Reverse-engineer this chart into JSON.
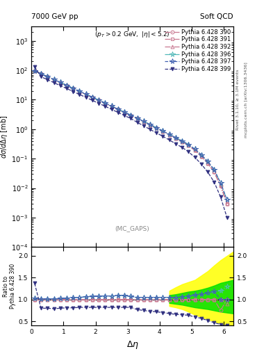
{
  "title_left": "7000 GeV pp",
  "title_right": "Soft QCD",
  "annotation": "(p_{T} > 0.2 GeV, |\\eta| < 5.2)",
  "mc_label": "(MC_GAPS)",
  "xlabel": "\\Delta\\eta",
  "ylabel_main": "d\\sigma/d\\Delta\\eta [mb]",
  "ylabel_ratio": "Ratio to Pythia 6.428 390",
  "right_label_top": "Rivet 3.1.10, \\geq 3.1M events",
  "right_label_bottom": "mcplots.cern.ch [arXiv:1306.3436]",
  "series": [
    {
      "label": "Pythia 6.428 390",
      "color": "#c87890",
      "marker": "o",
      "ls": "-.",
      "lw": 0.9,
      "ms": 3.5,
      "filled": false
    },
    {
      "label": "Pythia 6.428 391",
      "color": "#c87890",
      "marker": "s",
      "ls": "-.",
      "lw": 0.9,
      "ms": 3.5,
      "filled": false
    },
    {
      "label": "Pythia 6.428 392",
      "color": "#c87890",
      "marker": "^",
      "ls": "-.",
      "lw": 0.9,
      "ms": 3.5,
      "filled": false
    },
    {
      "label": "Pythia 6.428 396",
      "color": "#50b8b8",
      "marker": "*",
      "ls": "-.",
      "lw": 0.9,
      "ms": 5,
      "filled": false
    },
    {
      "label": "Pythia 6.428 397",
      "color": "#4060b0",
      "marker": "*",
      "ls": "--",
      "lw": 0.9,
      "ms": 5,
      "filled": false
    },
    {
      "label": "Pythia 6.428 399",
      "color": "#303080",
      "marker": "v",
      "ls": "--",
      "lw": 0.9,
      "ms": 3.5,
      "filled": true
    }
  ],
  "x_main": [
    0.1,
    0.3,
    0.5,
    0.7,
    0.9,
    1.1,
    1.3,
    1.5,
    1.7,
    1.9,
    2.1,
    2.3,
    2.5,
    2.7,
    2.9,
    3.1,
    3.3,
    3.5,
    3.7,
    3.9,
    4.1,
    4.3,
    4.5,
    4.7,
    4.9,
    5.1,
    5.3,
    5.5,
    5.7,
    5.9,
    6.1
  ],
  "y_series": [
    [
      95,
      75,
      60,
      48,
      38,
      30,
      24,
      19,
      15,
      12,
      9.5,
      7.5,
      6.0,
      4.7,
      3.7,
      2.9,
      2.3,
      1.8,
      1.4,
      1.1,
      0.85,
      0.65,
      0.5,
      0.38,
      0.28,
      0.19,
      0.12,
      0.07,
      0.035,
      0.012,
      0.003
    ],
    [
      95,
      75,
      60,
      48,
      38,
      30,
      24,
      19,
      15,
      12,
      9.5,
      7.5,
      6.0,
      4.7,
      3.7,
      2.9,
      2.3,
      1.8,
      1.4,
      1.1,
      0.85,
      0.65,
      0.5,
      0.38,
      0.28,
      0.19,
      0.12,
      0.07,
      0.035,
      0.012,
      0.003
    ],
    [
      95,
      75,
      60,
      48,
      38,
      30,
      24,
      19,
      15,
      12,
      9.5,
      7.5,
      6.0,
      4.7,
      3.7,
      2.9,
      2.3,
      1.8,
      1.4,
      1.1,
      0.85,
      0.65,
      0.5,
      0.38,
      0.28,
      0.19,
      0.12,
      0.07,
      0.035,
      0.012,
      0.003
    ],
    [
      97,
      76,
      61,
      49,
      39,
      31,
      24.5,
      19.5,
      15.5,
      12.3,
      9.7,
      7.7,
      6.1,
      4.8,
      3.8,
      3.0,
      2.35,
      1.85,
      1.45,
      1.12,
      0.87,
      0.67,
      0.52,
      0.4,
      0.3,
      0.21,
      0.135,
      0.08,
      0.042,
      0.015,
      0.004
    ],
    [
      97,
      76,
      61,
      49,
      39,
      31,
      24.5,
      19.5,
      15.5,
      12.3,
      9.7,
      7.7,
      6.1,
      4.8,
      3.8,
      3.0,
      2.35,
      1.85,
      1.45,
      1.12,
      0.87,
      0.67,
      0.52,
      0.4,
      0.3,
      0.21,
      0.135,
      0.08,
      0.042,
      0.015,
      0.004
    ],
    [
      130,
      60,
      48,
      38,
      30,
      24,
      19,
      15,
      12,
      9.5,
      7.5,
      6.0,
      4.7,
      3.7,
      2.9,
      2.3,
      1.7,
      1.3,
      0.98,
      0.75,
      0.57,
      0.43,
      0.32,
      0.24,
      0.17,
      0.11,
      0.065,
      0.035,
      0.016,
      0.005,
      0.001
    ]
  ],
  "ratio_series": [
    [
      1.0,
      1.0,
      1.0,
      1.0,
      1.0,
      1.0,
      1.0,
      1.0,
      1.0,
      1.0,
      1.0,
      1.0,
      1.0,
      1.0,
      1.0,
      1.0,
      1.0,
      1.0,
      1.0,
      1.0,
      1.0,
      1.0,
      1.0,
      1.0,
      1.0,
      1.0,
      1.0,
      1.0,
      1.0,
      0.75,
      1.0
    ],
    [
      1.0,
      1.0,
      1.0,
      1.0,
      1.0,
      1.0,
      1.0,
      1.0,
      1.0,
      1.0,
      1.0,
      1.0,
      1.0,
      1.0,
      1.0,
      1.0,
      1.0,
      1.0,
      1.0,
      1.0,
      1.0,
      1.0,
      1.0,
      1.0,
      1.0,
      1.0,
      1.0,
      1.0,
      1.0,
      1.0,
      1.0
    ],
    [
      1.0,
      1.0,
      1.0,
      1.0,
      1.0,
      1.0,
      1.0,
      1.0,
      1.0,
      1.0,
      1.0,
      1.0,
      1.0,
      1.0,
      1.0,
      1.0,
      1.0,
      1.0,
      1.0,
      1.0,
      1.0,
      1.0,
      1.0,
      1.0,
      1.0,
      1.0,
      1.0,
      1.0,
      1.0,
      1.0,
      0.9
    ],
    [
      1.02,
      1.01,
      1.01,
      1.01,
      1.02,
      1.03,
      1.04,
      1.05,
      1.06,
      1.07,
      1.07,
      1.08,
      1.08,
      1.09,
      1.09,
      1.07,
      1.05,
      1.05,
      1.05,
      1.05,
      1.05,
      1.05,
      1.04,
      1.06,
      1.08,
      1.1,
      1.12,
      1.15,
      1.18,
      1.2,
      1.3
    ],
    [
      1.02,
      1.01,
      1.01,
      1.01,
      1.02,
      1.03,
      1.04,
      1.05,
      1.06,
      1.07,
      1.07,
      1.08,
      1.08,
      1.09,
      1.09,
      1.07,
      1.05,
      1.05,
      1.05,
      1.05,
      1.05,
      1.05,
      1.04,
      1.06,
      1.08,
      1.1,
      1.12,
      1.15,
      1.18,
      1.0,
      1.0
    ],
    [
      1.37,
      0.8,
      0.8,
      0.79,
      0.8,
      0.81,
      0.81,
      0.82,
      0.82,
      0.82,
      0.82,
      0.82,
      0.82,
      0.82,
      0.82,
      0.82,
      0.77,
      0.75,
      0.73,
      0.72,
      0.7,
      0.68,
      0.66,
      0.65,
      0.64,
      0.6,
      0.57,
      0.52,
      0.47,
      0.43,
      0.4
    ]
  ],
  "band_yellow_x": [
    4.3,
    4.5,
    4.7,
    4.9,
    5.1,
    5.3,
    5.5,
    5.7,
    5.9,
    6.3
  ],
  "band_yellow_lo": [
    0.85,
    0.82,
    0.78,
    0.72,
    0.65,
    0.6,
    0.55,
    0.5,
    0.45,
    0.4
  ],
  "band_yellow_hi": [
    1.2,
    1.28,
    1.35,
    1.4,
    1.45,
    1.55,
    1.65,
    1.78,
    1.9,
    2.1
  ],
  "band_green_x": [
    4.3,
    4.5,
    4.7,
    4.9,
    5.1,
    5.3,
    5.5,
    5.7,
    5.9,
    6.3
  ],
  "band_green_lo": [
    0.92,
    0.9,
    0.88,
    0.85,
    0.82,
    0.8,
    0.78,
    0.75,
    0.72,
    0.68
  ],
  "band_green_hi": [
    1.1,
    1.12,
    1.15,
    1.18,
    1.2,
    1.23,
    1.27,
    1.32,
    1.38,
    1.45
  ],
  "xlim": [
    0,
    6.3
  ],
  "ylim_main": [
    0.0001,
    3000.0
  ],
  "ylim_ratio": [
    0.4,
    2.2
  ],
  "ratio_yticks": [
    0.5,
    1.0,
    1.5,
    2.0
  ]
}
